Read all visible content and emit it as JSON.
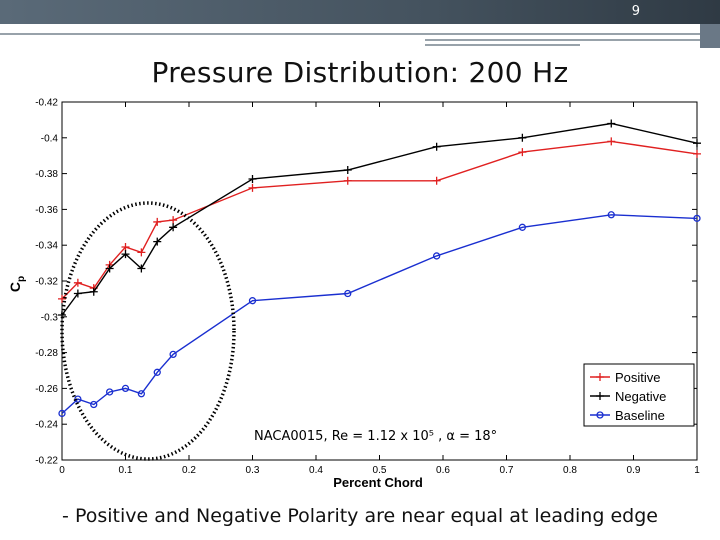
{
  "slide": {
    "number": "9",
    "title": "Pressure Distribution: 200 Hz",
    "bullet": "- Positive and Negative Polarity are near equal at leading edge"
  },
  "chart_data": {
    "type": "line",
    "xlabel": "Percent Chord",
    "ylabel": "Cp",
    "xlim": [
      0,
      1
    ],
    "ylim": [
      -0.42,
      -0.22
    ],
    "y_reversed": true,
    "x_ticks": [
      0,
      0.1,
      0.2,
      0.3,
      0.4,
      0.5,
      0.6,
      0.7,
      0.8,
      0.9,
      1
    ],
    "x_tick_labels": [
      "0",
      "0.1",
      "0.2",
      "0.3",
      "0.4",
      "0.5",
      "0.6",
      "0.7",
      "0.8",
      "0.9",
      "1"
    ],
    "y_ticks": [
      -0.42,
      -0.4,
      -0.38,
      -0.36,
      -0.34,
      -0.32,
      -0.3,
      -0.28,
      -0.26,
      -0.24,
      -0.22
    ],
    "y_tick_labels": [
      "-0.42",
      "-0.4",
      "-0.38",
      "-0.36",
      "-0.34",
      "-0.32",
      "-0.3",
      "-0.28",
      "-0.26",
      "-0.24",
      "-0.22"
    ],
    "grid": false,
    "legend_position": "bottom-right",
    "annotation": "NACA0015, Re = 1.12 x 10⁵ , α = 18°",
    "series": [
      {
        "name": "Positive",
        "color": "#e02020",
        "marker": "plus",
        "x": [
          0,
          0.025,
          0.05,
          0.075,
          0.1,
          0.125,
          0.15,
          0.175,
          0.3,
          0.45,
          0.59,
          0.725,
          0.865,
          1
        ],
        "y": [
          -0.31,
          -0.319,
          -0.316,
          -0.329,
          -0.339,
          -0.336,
          -0.353,
          -0.354,
          -0.372,
          -0.376,
          -0.376,
          -0.392,
          -0.398,
          -0.391
        ]
      },
      {
        "name": "Negative",
        "color": "#000000",
        "marker": "plus",
        "x": [
          0,
          0.025,
          0.05,
          0.075,
          0.1,
          0.125,
          0.15,
          0.175,
          0.3,
          0.45,
          0.59,
          0.725,
          0.865,
          1
        ],
        "y": [
          -0.301,
          -0.313,
          -0.314,
          -0.327,
          -0.335,
          -0.327,
          -0.342,
          -0.35,
          -0.377,
          -0.382,
          -0.395,
          -0.4,
          -0.408,
          -0.397
        ]
      },
      {
        "name": "Baseline",
        "color": "#1a2fd0",
        "marker": "circle",
        "x": [
          0,
          0.025,
          0.05,
          0.075,
          0.1,
          0.125,
          0.15,
          0.175,
          0.3,
          0.45,
          0.59,
          0.725,
          0.865,
          1
        ],
        "y": [
          -0.246,
          -0.254,
          -0.251,
          -0.258,
          -0.26,
          -0.257,
          -0.269,
          -0.279,
          -0.309,
          -0.313,
          -0.334,
          -0.35,
          -0.357,
          -0.355
        ]
      }
    ]
  }
}
